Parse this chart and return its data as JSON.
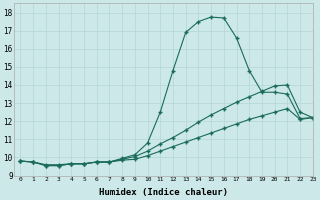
{
  "xlabel": "Humidex (Indice chaleur)",
  "bg_color": "#cce8e8",
  "grid_color": "#b8d8d8",
  "line_color": "#1a6b5a",
  "xlim": [
    -0.5,
    23
  ],
  "ylim": [
    9,
    18.5
  ],
  "xticks": [
    0,
    1,
    2,
    3,
    4,
    5,
    6,
    7,
    8,
    9,
    10,
    11,
    12,
    13,
    14,
    15,
    16,
    17,
    18,
    19,
    20,
    21,
    22,
    23
  ],
  "yticks": [
    9,
    10,
    11,
    12,
    13,
    14,
    15,
    16,
    17,
    18
  ],
  "line1_x": [
    0,
    1,
    2,
    3,
    4,
    5,
    6,
    7,
    8,
    9,
    10,
    11,
    12,
    13,
    14,
    15,
    16,
    17,
    18,
    19,
    20,
    21,
    22,
    23
  ],
  "line1_y": [
    9.8,
    9.75,
    9.6,
    9.6,
    9.65,
    9.65,
    9.75,
    9.75,
    9.95,
    10.15,
    10.8,
    12.5,
    14.8,
    16.9,
    17.5,
    17.75,
    17.7,
    16.6,
    14.8,
    13.6,
    13.6,
    13.5,
    12.15,
    12.2
  ],
  "line2_x": [
    0,
    1,
    2,
    3,
    4,
    5,
    6,
    7,
    8,
    9,
    10,
    11,
    12,
    13,
    14,
    15,
    16,
    17,
    18,
    19,
    20,
    21,
    22,
    23
  ],
  "line2_y": [
    9.8,
    9.75,
    9.55,
    9.55,
    9.65,
    9.65,
    9.75,
    9.75,
    9.9,
    10.05,
    10.35,
    10.75,
    11.1,
    11.5,
    11.95,
    12.35,
    12.7,
    13.05,
    13.35,
    13.65,
    13.95,
    14.0,
    12.5,
    12.2
  ],
  "line3_x": [
    0,
    1,
    2,
    3,
    4,
    5,
    6,
    7,
    8,
    9,
    10,
    11,
    12,
    13,
    14,
    15,
    16,
    17,
    18,
    19,
    20,
    21,
    22,
    23
  ],
  "line3_y": [
    9.8,
    9.75,
    9.55,
    9.55,
    9.65,
    9.65,
    9.75,
    9.75,
    9.85,
    9.9,
    10.1,
    10.35,
    10.6,
    10.85,
    11.1,
    11.35,
    11.6,
    11.85,
    12.1,
    12.3,
    12.5,
    12.7,
    12.1,
    12.2
  ]
}
